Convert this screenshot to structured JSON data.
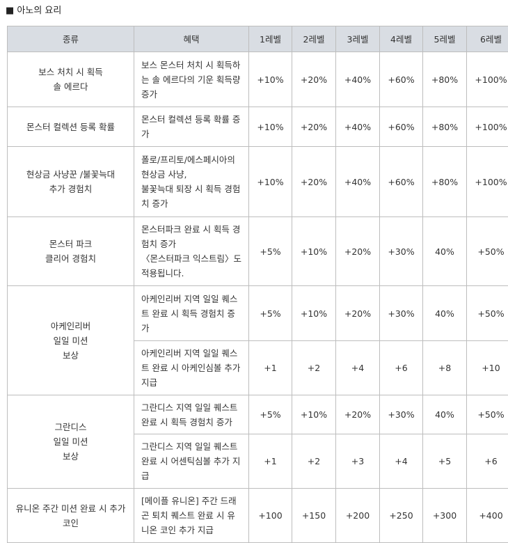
{
  "title": "■ 아노의 요리",
  "headers": [
    "종류",
    "혜택",
    "1레벨",
    "2레벨",
    "3레벨",
    "4레벨",
    "5레벨",
    "6레벨"
  ],
  "rows": [
    {
      "category": "보스 처치 시 획득\n솔 에르다",
      "benefit": "보스 몬스터 처치 시 획득하는 솔 에르다의 기운 획득량 증가",
      "values": [
        "+10%",
        "+20%",
        "+40%",
        "+60%",
        "+80%",
        "+100%"
      ]
    },
    {
      "category": "몬스터 컬렉션 등록 확률",
      "benefit": "몬스터 컬렉션 등록 확률 증가",
      "values": [
        "+10%",
        "+20%",
        "+40%",
        "+60%",
        "+80%",
        "+100%"
      ]
    },
    {
      "category": "현상금 사냥꾼 /불꽃늑대\n추가 경험치",
      "benefit": "폴로/프리토/에스페시아의 현상금 사냥,\n불꽃늑대 퇴장 시 획득 경험치 증가",
      "values": [
        "+10%",
        "+20%",
        "+40%",
        "+60%",
        "+80%",
        "+100%"
      ]
    },
    {
      "category": "몬스터 파크\n클리어 경험치",
      "benefit": "몬스터파크 완료 시 획득 경험치 증가\n〈몬스터파크 익스트림〉도 적용됩니다.",
      "values": [
        "+5%",
        "+10%",
        "+20%",
        "+30%",
        "40%",
        "+50%"
      ]
    },
    {
      "category": "아케인리버\n일일 미션\n보상",
      "benefit": "아케인리버 지역 일일 퀘스트 완료 시 획득 경험치 증가",
      "values": [
        "+5%",
        "+10%",
        "+20%",
        "+30%",
        "40%",
        "+50%"
      ]
    },
    {
      "category": "",
      "benefit": "아케인리버 지역 일일 퀘스트 완료 시 아케인심볼 추가 지급",
      "values": [
        "+1",
        "+2",
        "+4",
        "+6",
        "+8",
        "+10"
      ]
    },
    {
      "category": "그란디스\n일일 미션\n보상",
      "benefit": "그란디스 지역 일일 퀘스트 완료 시 획득 경험치 증가",
      "values": [
        "+5%",
        "+10%",
        "+20%",
        "+30%",
        "40%",
        "+50%"
      ]
    },
    {
      "category": "",
      "benefit": "그란디스 지역 일일 퀘스트 완료 시 어센틱심볼 추가 지급",
      "values": [
        "+1",
        "+2",
        "+3",
        "+4",
        "+5",
        "+6"
      ]
    },
    {
      "category": "유니온 주간 미션 완료 시 추가 코인",
      "benefit": "[메이플 유니온] 주간 드래곤 퇴치 퀘스트 완료 시 유니온 코인 추가 지급",
      "values": [
        "+100",
        "+150",
        "+200",
        "+250",
        "+300",
        "+400"
      ]
    }
  ]
}
